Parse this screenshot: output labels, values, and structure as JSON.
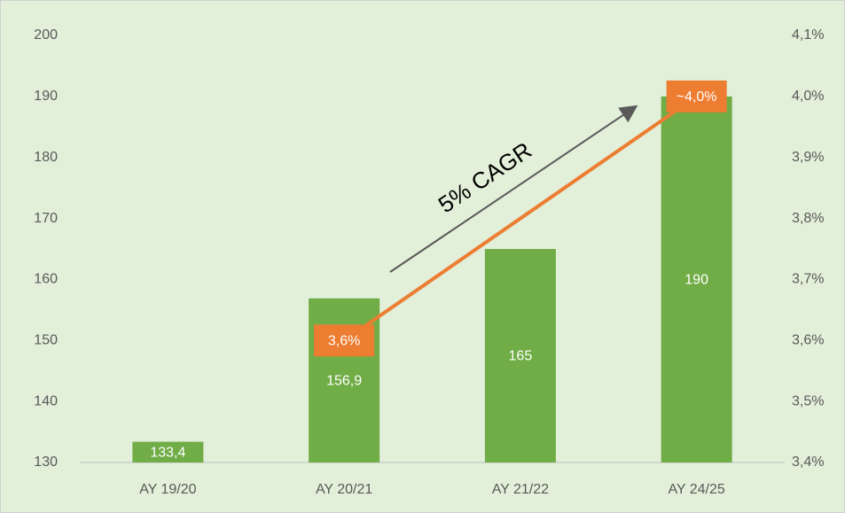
{
  "chart_data": {
    "type": "bar_line",
    "categories": [
      "AY 19/20",
      "AY 20/21",
      "AY 21/22",
      "AY 24/25"
    ],
    "series": [
      {
        "type": "bar",
        "color": "#70ad47",
        "values": [
          133.4,
          156.9,
          165,
          190
        ],
        "value_labels": [
          "133,4",
          "156,9",
          "165",
          "190"
        ]
      },
      {
        "type": "line",
        "axis": "y2",
        "color": "#ed7d31",
        "values": [
          null,
          3.6,
          3.8,
          4.0
        ],
        "value_labels": [
          null,
          "3,6%",
          null,
          "~4,0%"
        ]
      }
    ],
    "ylim": [
      130,
      200
    ],
    "yticks": [
      130,
      140,
      150,
      160,
      170,
      180,
      190,
      200
    ],
    "y2lim": [
      3.4,
      4.1
    ],
    "y2ticks": [
      {
        "value": 3.4,
        "label": "3,4%"
      },
      {
        "value": 3.5,
        "label": "3,5%"
      },
      {
        "value": 3.6,
        "label": "3,6%"
      },
      {
        "value": 3.7,
        "label": "3,7%"
      },
      {
        "value": 3.8,
        "label": "3,8%"
      },
      {
        "value": 3.9,
        "label": "3,9%"
      },
      {
        "value": 4.0,
        "label": "4,0%"
      },
      {
        "value": 4.1,
        "label": "4,1%"
      }
    ],
    "grid": false,
    "annotation": "5% CAGR"
  }
}
